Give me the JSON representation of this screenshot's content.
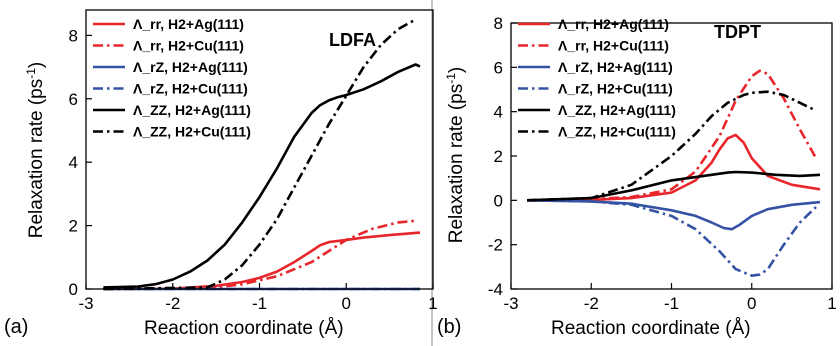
{
  "chart_data": [
    {
      "type": "line",
      "panel_label": "(a)",
      "title": "LDFA",
      "xlabel": "Reaction coordinate (Å)",
      "ylabel": "Relaxation rate (ps",
      "ylabel_sup": "-1",
      "ylabel_end": ")",
      "xlim": [
        -3,
        1
      ],
      "ylim": [
        0,
        8.8
      ],
      "xticks": [
        -3,
        -2,
        -1,
        0,
        1
      ],
      "yticks": [
        0,
        2,
        4,
        6,
        8
      ],
      "legend_position": "top-left",
      "series": [
        {
          "name": "Λ_rr, H2+Ag(111)",
          "color": "#e8262b",
          "dash": "solid",
          "x": [
            -2.8,
            -2.0,
            -1.5,
            -1.2,
            -1.0,
            -0.8,
            -0.6,
            -0.4,
            -0.3,
            -0.2,
            0.0,
            0.2,
            0.5,
            0.85
          ],
          "y": [
            0.0,
            0.01,
            0.1,
            0.22,
            0.35,
            0.55,
            0.85,
            1.2,
            1.38,
            1.48,
            1.55,
            1.62,
            1.7,
            1.78
          ]
        },
        {
          "name": "Λ_rr, H2+Cu(111)",
          "color": "#e8262b",
          "dash": "dashdot",
          "x": [
            -2.8,
            -1.6,
            -1.2,
            -0.8,
            -0.4,
            -0.2,
            0.0,
            0.3,
            0.6,
            0.8
          ],
          "y": [
            0.0,
            0.02,
            0.15,
            0.4,
            0.85,
            1.2,
            1.55,
            1.9,
            2.1,
            2.15
          ]
        },
        {
          "name": "Λ_rZ, H2+Ag(111)",
          "color": "#3553a4",
          "dash": "solid",
          "x": [
            -2.8,
            0.85
          ],
          "y": [
            0.0,
            0.0
          ]
        },
        {
          "name": "Λ_rZ, H2+Cu(111)",
          "color": "#3553a4",
          "dash": "dashdot",
          "x": [
            -2.8,
            0.85
          ],
          "y": [
            0.0,
            0.0
          ]
        },
        {
          "name": "Λ_ZZ, H2+Ag(111)",
          "color": "#000000",
          "dash": "solid",
          "x": [
            -2.8,
            -2.4,
            -2.2,
            -2.0,
            -1.8,
            -1.6,
            -1.4,
            -1.2,
            -1.0,
            -0.8,
            -0.6,
            -0.4,
            -0.3,
            -0.2,
            -0.1,
            0.0,
            0.2,
            0.4,
            0.6,
            0.8,
            0.85
          ],
          "y": [
            0.05,
            0.08,
            0.15,
            0.3,
            0.55,
            0.9,
            1.4,
            2.1,
            2.9,
            3.8,
            4.8,
            5.55,
            5.8,
            5.95,
            6.05,
            6.12,
            6.3,
            6.55,
            6.85,
            7.08,
            7.02
          ]
        },
        {
          "name": "Λ_ZZ, H2+Cu(111)",
          "color": "#000000",
          "dash": "dashdot",
          "x": [
            -2.8,
            -1.6,
            -1.4,
            -1.2,
            -1.0,
            -0.8,
            -0.6,
            -0.4,
            -0.2,
            0.0,
            0.2,
            0.4,
            0.6,
            0.8
          ],
          "y": [
            0.0,
            0.05,
            0.3,
            0.75,
            1.4,
            2.2,
            3.2,
            4.2,
            5.2,
            6.1,
            7.0,
            7.7,
            8.2,
            8.5
          ]
        }
      ]
    },
    {
      "type": "line",
      "panel_label": "(b)",
      "title": "TDPT",
      "xlabel": "Reaction coordinate (Å)",
      "ylabel": "Relaxation rate (ps",
      "ylabel_sup": "-1",
      "ylabel_end": ")",
      "xlim": [
        -3,
        1
      ],
      "ylim": [
        -4,
        8
      ],
      "xticks": [
        -3,
        -2,
        -1,
        0,
        1
      ],
      "yticks": [
        -4,
        -2,
        0,
        2,
        4,
        6,
        8
      ],
      "legend_position": "top-left",
      "series": [
        {
          "name": "Λ_rr, H2+Ag(111)",
          "color": "#e8262b",
          "dash": "solid",
          "x": [
            -2.8,
            -2.0,
            -1.5,
            -1.0,
            -0.7,
            -0.5,
            -0.4,
            -0.3,
            -0.2,
            -0.1,
            0.0,
            0.2,
            0.5,
            0.85
          ],
          "y": [
            0.0,
            0.02,
            0.1,
            0.35,
            0.9,
            1.7,
            2.3,
            2.8,
            2.95,
            2.6,
            1.9,
            1.1,
            0.7,
            0.5
          ]
        },
        {
          "name": "Λ_rr, H2+Cu(111)",
          "color": "#e8262b",
          "dash": "dashdot",
          "x": [
            -2.8,
            -2.0,
            -1.5,
            -1.0,
            -0.7,
            -0.4,
            -0.2,
            0.0,
            0.1,
            0.2,
            0.4,
            0.6,
            0.8
          ],
          "y": [
            0.0,
            0.05,
            0.15,
            0.5,
            1.3,
            2.9,
            4.5,
            5.6,
            5.85,
            5.7,
            4.6,
            3.2,
            1.9
          ]
        },
        {
          "name": "Λ_rZ, H2+Ag(111)",
          "color": "#3553a4",
          "dash": "solid",
          "x": [
            -2.8,
            -2.0,
            -1.5,
            -1.0,
            -0.7,
            -0.5,
            -0.35,
            -0.25,
            -0.15,
            0.0,
            0.2,
            0.5,
            0.85
          ],
          "y": [
            0.0,
            -0.05,
            -0.15,
            -0.45,
            -0.7,
            -1.0,
            -1.25,
            -1.3,
            -1.1,
            -0.7,
            -0.4,
            -0.2,
            -0.08
          ]
        },
        {
          "name": "Λ_rZ, H2+Cu(111)",
          "color": "#3553a4",
          "dash": "dashdot",
          "x": [
            -2.8,
            -2.0,
            -1.5,
            -1.0,
            -0.7,
            -0.4,
            -0.2,
            0.0,
            0.1,
            0.2,
            0.4,
            0.6,
            0.8
          ],
          "y": [
            0.0,
            -0.05,
            -0.2,
            -0.7,
            -1.3,
            -2.3,
            -3.1,
            -3.4,
            -3.35,
            -3.1,
            -2.0,
            -1.0,
            -0.3
          ]
        },
        {
          "name": "Λ_ZZ, H2+Ag(111)",
          "color": "#000000",
          "dash": "solid",
          "x": [
            -2.8,
            -2.0,
            -1.5,
            -1.0,
            -0.5,
            -0.3,
            -0.2,
            0.0,
            0.3,
            0.6,
            0.85
          ],
          "y": [
            0.0,
            0.1,
            0.45,
            0.9,
            1.15,
            1.25,
            1.28,
            1.25,
            1.15,
            1.1,
            1.15
          ]
        },
        {
          "name": "Λ_ZZ, H2+Cu(111)",
          "color": "#000000",
          "dash": "dashdot",
          "x": [
            -2.8,
            -2.0,
            -1.5,
            -1.0,
            -0.7,
            -0.5,
            -0.3,
            -0.1,
            0.0,
            0.2,
            0.4,
            0.6,
            0.8
          ],
          "y": [
            0.0,
            0.1,
            0.7,
            2.0,
            3.0,
            3.8,
            4.4,
            4.75,
            4.85,
            4.9,
            4.75,
            4.4,
            4.05
          ]
        }
      ]
    }
  ]
}
